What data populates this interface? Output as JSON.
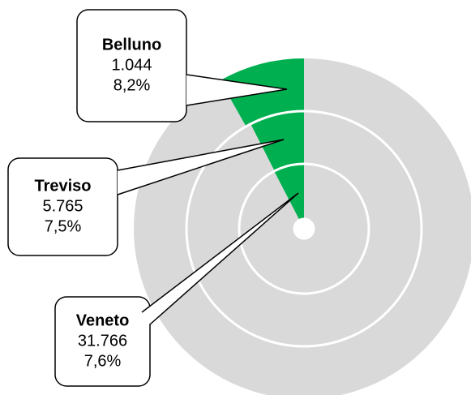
{
  "chart_data": {
    "type": "radial-bar",
    "categories": [
      "Belluno",
      "Treviso",
      "Veneto"
    ],
    "values": [
      1044,
      5765,
      31766
    ],
    "value_labels": [
      "1.044",
      "5.765",
      "31.766"
    ],
    "percentages": [
      8.2,
      7.5,
      7.6
    ],
    "percentage_labels": [
      "8,2%",
      "7,5%",
      "7,6%"
    ],
    "color": "#00b050",
    "track_color": "#d9d9d9"
  }
}
